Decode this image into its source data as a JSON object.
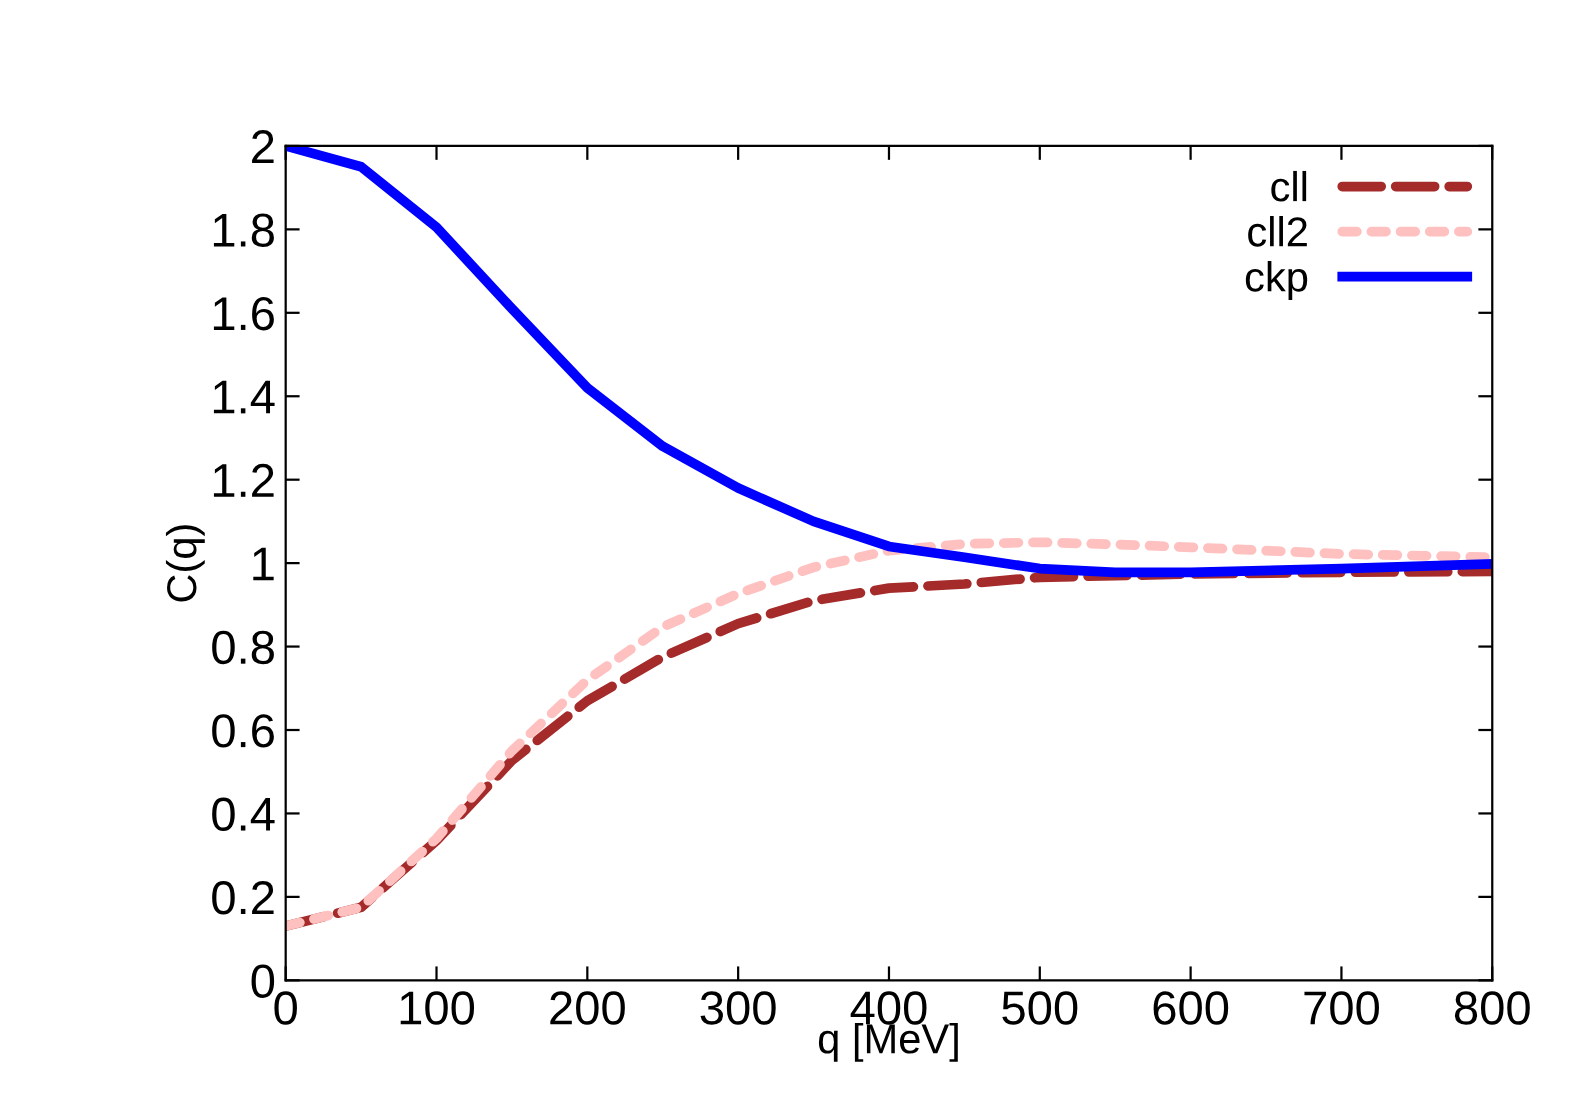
{
  "chart_data": {
    "type": "line",
    "xlabel": "q [MeV]",
    "ylabel": "C(q)",
    "x": [
      0,
      50,
      100,
      150,
      200,
      250,
      300,
      350,
      400,
      450,
      500,
      550,
      600,
      700,
      800
    ],
    "series": [
      {
        "name": "cll",
        "color": "#a52a2a",
        "line_style": "dashed",
        "values": [
          0.13,
          0.175,
          0.335,
          0.527,
          0.67,
          0.775,
          0.855,
          0.91,
          0.94,
          0.95,
          0.966,
          0.97,
          0.974,
          0.978,
          0.98
        ]
      },
      {
        "name": "cll2",
        "color": "#ffc0c0",
        "line_style": "dotted",
        "values": [
          0.13,
          0.175,
          0.34,
          0.55,
          0.72,
          0.847,
          0.927,
          0.99,
          1.03,
          1.046,
          1.05,
          1.045,
          1.038,
          1.022,
          1.014
        ]
      },
      {
        "name": "ckp",
        "color": "#0000ff",
        "line_style": "solid",
        "values": [
          2.0,
          1.95,
          1.805,
          1.61,
          1.42,
          1.28,
          1.18,
          1.1,
          1.04,
          1.014,
          0.987,
          0.978,
          0.978,
          0.987,
          0.998
        ]
      }
    ],
    "xlim": [
      0,
      800
    ],
    "xticks": [
      0,
      100,
      200,
      300,
      400,
      500,
      600,
      700,
      800
    ],
    "ylim": [
      0,
      2
    ],
    "yticks": [
      0,
      0.2,
      0.4,
      0.6,
      0.8,
      1,
      1.2,
      1.4,
      1.6,
      1.8,
      2
    ],
    "grid": false,
    "legend": "top right",
    "marker": "none"
  }
}
